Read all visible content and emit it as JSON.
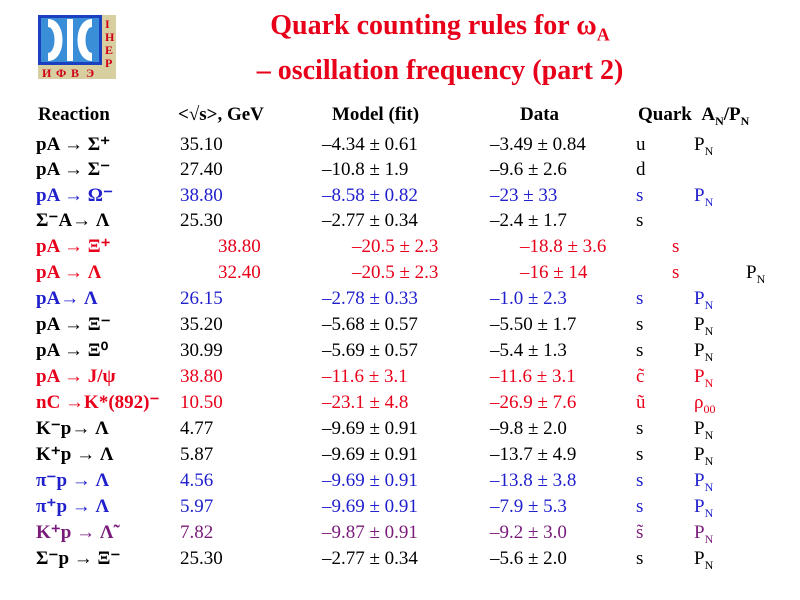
{
  "title": {
    "line1_prefix": "Quark counting rules for ω",
    "line1_sub": "A",
    "line2": "– oscillation frequency (part 2)"
  },
  "logo": {
    "letters_right": [
      "І",
      "Н",
      "Е",
      "Р"
    ],
    "letters_bottom": [
      "И",
      "Ф",
      "В",
      "Э"
    ]
  },
  "header": {
    "reaction": "Reaction",
    "energy": "<√s>, GeV",
    "model": "Model (fit)",
    "data": "Data",
    "quark": "Quark",
    "an": "A",
    "an_sub": "N",
    "pn": "/P",
    "pn_sub": "N"
  },
  "rows": [
    {
      "reaction": "pA →  Σ⁺",
      "energy": "35.10",
      "model": "–4.34  ± 0.61",
      "data": "–3.49 ± 0.84",
      "quark": "u",
      "pol": "P",
      "pol_sub": "N",
      "color": "black"
    },
    {
      "reaction": "pA →  Σ⁻",
      "energy": "27.40",
      "model": "–10.8  ± 1.9",
      "data": "–9.6 ± 2.6",
      "quark": "d",
      "pol": "",
      "pol_sub": "",
      "color": "black"
    },
    {
      "reaction": "pA →  Ω⁻",
      "energy": "38.80",
      "model": "–8.58  ± 0.82",
      "data": "–23  ± 33",
      "quark": "s",
      "pol": "P",
      "pol_sub": "N",
      "color": "blue"
    },
    {
      "reaction": "Σ⁻A→ Λ",
      "energy": "25.30",
      "model": "–2.77  ± 0.34",
      "data": "–2.4  ± 1.7",
      "quark": "s",
      "pol": "",
      "pol_sub": "",
      "color": "black"
    },
    {
      "reaction": "pA →  Ξ⁺",
      "energy": "38.80",
      "model": "–20.5  ± 2.3",
      "data": "–18.8 ± 3.6",
      "quark": "s",
      "pol": "",
      "pol_sub": "",
      "color": "red",
      "shift": true
    },
    {
      "reaction": "pA →  Λ",
      "energy": "32.40",
      "model": "–20.5  ± 2.3",
      "data": "–16   ±  14",
      "quark": "s",
      "pol": "P",
      "pol_sub": "N",
      "color": "red",
      "shift": true,
      "pol_black": true
    },
    {
      "reaction": "pA→   Λ",
      "energy": "26.15",
      "model": "–2.78  ± 0.33",
      "data": "–1.0 ± 2.3",
      "quark": "s",
      "pol": "P",
      "pol_sub": "N",
      "color": "blue"
    },
    {
      "reaction": "pA →  Ξ⁻",
      "energy": "35.20",
      "model": "–5.68  ± 0.57",
      "data": "–5.50 ± 1.7",
      "quark": "s",
      "pol": "P",
      "pol_sub": "N",
      "color": "black"
    },
    {
      "reaction": "pA →  Ξ⁰",
      "energy": "30.99",
      "model": "–5.69  ± 0.57",
      "data": "–5.4  ± 1.3",
      "quark": "s",
      "pol": "P",
      "pol_sub": "N",
      "color": "black"
    },
    {
      "reaction": "pA →  J/ψ",
      "energy": "38.80",
      "model": "–11.6  ± 3.1",
      "data": "–11.6 ± 3.1",
      "quark": "c̃",
      "pol": "P",
      "pol_sub": "N",
      "color": "red"
    },
    {
      "reaction": "nC →K*(892)⁻",
      "energy": "10.50",
      "model": "–23.1  ± 4.8",
      "data": "–26.9 ± 7.6",
      "quark": "ũ",
      "pol": "ρ",
      "pol_sub": "00",
      "color": "red"
    },
    {
      "reaction": "K⁻p→  Λ",
      "energy": "4.77",
      "model": "–9.69  ±  0.91",
      "data": "–9.8   ±  2.0",
      "quark": "s",
      "pol": "P",
      "pol_sub": "N",
      "color": "black"
    },
    {
      "reaction": "K⁺p → Λ",
      "energy": "5.87",
      "model": "–9.69  ±  0.91",
      "data": "–13.7 ±  4.9",
      "quark": "s",
      "pol": "P",
      "pol_sub": "N",
      "color": "black"
    },
    {
      "reaction": "π⁻p →  Λ",
      "energy": "4.56",
      "model": "–9.69  ±  0.91",
      "data": "–13.8 ±  3.8",
      "quark": "s",
      "pol": "P",
      "pol_sub": "N",
      "color": "blue"
    },
    {
      "reaction": "π⁺p →  Λ",
      "energy": "5.97",
      "model": "–9.69  ±  0.91",
      "data": "–7.9 ±  5.3",
      "quark": "s",
      "pol": "P",
      "pol_sub": "N",
      "color": "blue"
    },
    {
      "reaction": "K⁺p → Λ̃",
      "energy": "7.82",
      "model": "–9.87  ±  0.91",
      "data": "–9.2  ±  3.0",
      "quark": "s̃",
      "pol": "P",
      "pol_sub": "N",
      "color": "purple"
    },
    {
      "reaction": "Σ⁻p  → Ξ⁻",
      "energy": "25.30",
      "model": "–2.77  ±  0.34",
      "data": "–5.6   ±  2.0",
      "quark": "s",
      "pol": "P",
      "pol_sub": "N",
      "color": "black"
    }
  ]
}
